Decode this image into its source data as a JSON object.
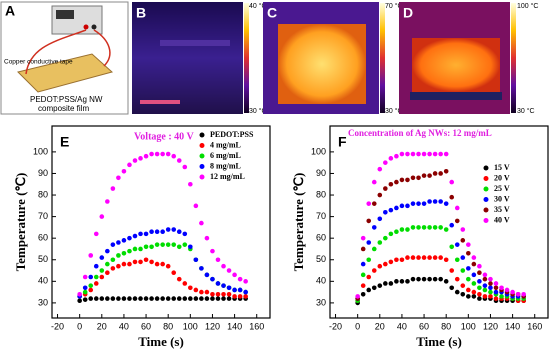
{
  "panels": [
    {
      "label": "A",
      "texts": [
        "Copper conductive tape",
        "PEDOT:PSS/Ag NW",
        "composite film"
      ]
    },
    {
      "label": "B",
      "scale_max": "40 °C",
      "scale_min": "30 °C"
    },
    {
      "label": "C",
      "scale_max": "70 °C",
      "scale_min": "30 °C"
    },
    {
      "label": "D",
      "scale_max": "100 °C",
      "scale_min": "30 °C"
    }
  ],
  "chart_data": [
    {
      "type": "scatter",
      "panel_label": "E",
      "annotation": "Voltage : 40 V",
      "annotation_color": "#e020e0",
      "x_label": "Time (s)",
      "y_label": "Temperature (℃)",
      "xlim": [
        -25,
        172
      ],
      "ylim": [
        23,
        112
      ],
      "xticks": [
        -20,
        0,
        20,
        40,
        60,
        80,
        100,
        120,
        140,
        160
      ],
      "yticks": [
        30,
        40,
        50,
        60,
        70,
        80,
        90,
        100
      ],
      "legend": "upper right",
      "x": [
        0,
        5,
        10,
        15,
        20,
        25,
        30,
        35,
        40,
        45,
        50,
        55,
        60,
        65,
        70,
        75,
        80,
        85,
        90,
        95,
        100,
        105,
        110,
        115,
        120,
        125,
        130,
        135,
        140,
        145,
        150
      ],
      "series": [
        {
          "name": "PEDOT:PSS",
          "color": "#000000",
          "values": [
            31,
            31.5,
            32,
            32,
            32,
            32,
            32,
            32,
            32,
            32,
            32,
            32,
            32,
            32,
            32,
            32,
            32,
            32,
            32,
            32,
            32,
            32,
            32,
            32,
            32,
            32,
            32,
            32,
            32,
            32,
            32
          ]
        },
        {
          "name": "4 mg/mL",
          "color": "#ff0000",
          "values": [
            33,
            34,
            36,
            39,
            42,
            44,
            46,
            47,
            48,
            48,
            49,
            49,
            50,
            49,
            48,
            48,
            47,
            44,
            41,
            39,
            37,
            36,
            35,
            35,
            34,
            34,
            34,
            34,
            33,
            33,
            33
          ]
        },
        {
          "name": "6 mg/mL",
          "color": "#00dd00",
          "values": [
            33,
            35,
            38,
            42,
            45,
            48,
            50,
            52,
            53,
            54,
            55,
            55,
            56,
            56,
            57,
            57,
            57,
            57,
            56,
            57,
            55,
            50,
            46,
            43,
            41,
            39,
            38,
            37,
            36,
            36,
            35
          ]
        },
        {
          "name": "8 mg/mL",
          "color": "#0000ff",
          "values": [
            33,
            37,
            42,
            47,
            51,
            54,
            57,
            58,
            59,
            60,
            61,
            62,
            62,
            63,
            63,
            63,
            64,
            64,
            63,
            62,
            56,
            50,
            46,
            43,
            41,
            39,
            38,
            37,
            36,
            36,
            35
          ]
        },
        {
          "name": "12 mg/mL",
          "color": "#ff00ff",
          "values": [
            34,
            42,
            52,
            62,
            70,
            77,
            83,
            88,
            91,
            94,
            96,
            97,
            98,
            99,
            99,
            99,
            99,
            98,
            96,
            93,
            85,
            75,
            67,
            60,
            54,
            50,
            47,
            45,
            43,
            41,
            40
          ]
        }
      ]
    },
    {
      "type": "scatter",
      "panel_label": "F",
      "annotation": "Concentration of Ag NWs: 12 mg/mL",
      "annotation_color": "#e020e0",
      "x_label": "Time (s)",
      "y_label": "Temperature (℃)",
      "xlim": [
        -25,
        172
      ],
      "ylim": [
        23,
        112
      ],
      "xticks": [
        -20,
        0,
        20,
        40,
        60,
        80,
        100,
        120,
        140,
        160
      ],
      "yticks": [
        30,
        40,
        50,
        60,
        70,
        80,
        90,
        100
      ],
      "legend": "center right",
      "x": [
        0,
        5,
        10,
        15,
        20,
        25,
        30,
        35,
        40,
        45,
        50,
        55,
        60,
        65,
        70,
        75,
        80,
        85,
        90,
        95,
        100,
        105,
        110,
        115,
        120,
        125,
        130,
        135,
        140,
        145,
        150
      ],
      "series": [
        {
          "name": "15 V",
          "color": "#000000",
          "values": [
            30,
            34,
            36,
            37,
            38,
            39,
            39,
            40,
            40,
            40,
            41,
            41,
            41,
            41,
            41,
            41,
            40,
            37,
            35,
            34,
            33,
            33,
            32,
            32,
            32,
            31,
            31,
            31,
            31,
            31,
            31
          ]
        },
        {
          "name": "20 V",
          "color": "#ff0000",
          "values": [
            31,
            38,
            42,
            45,
            47,
            48,
            49,
            50,
            50,
            51,
            51,
            51,
            51,
            51,
            51,
            51,
            50,
            45,
            41,
            38,
            36,
            35,
            34,
            33,
            33,
            32,
            32,
            32,
            32,
            31,
            31
          ]
        },
        {
          "name": "25 V",
          "color": "#00dd00",
          "values": [
            31,
            43,
            50,
            55,
            58,
            60,
            62,
            63,
            64,
            64,
            65,
            65,
            65,
            65,
            65,
            65,
            64,
            56,
            50,
            45,
            41,
            39,
            37,
            36,
            35,
            34,
            33,
            33,
            32,
            32,
            32
          ]
        },
        {
          "name": "30 V",
          "color": "#0000ff",
          "values": [
            32,
            48,
            58,
            65,
            69,
            72,
            73,
            74,
            75,
            75,
            76,
            76,
            76,
            77,
            77,
            77,
            76,
            66,
            57,
            51,
            46,
            43,
            40,
            38,
            37,
            35,
            35,
            34,
            33,
            33,
            33
          ]
        },
        {
          "name": "35 V",
          "color": "#8b0000",
          "values": [
            32,
            55,
            68,
            76,
            80,
            83,
            85,
            86,
            87,
            87,
            88,
            88,
            89,
            89,
            90,
            90,
            91,
            79,
            68,
            59,
            53,
            48,
            44,
            41,
            39,
            37,
            36,
            35,
            34,
            34,
            33
          ]
        },
        {
          "name": "40 V",
          "color": "#ff00ff",
          "values": [
            33,
            60,
            76,
            86,
            92,
            95,
            97,
            98,
            99,
            99,
            99,
            99,
            99,
            99,
            99,
            99,
            99,
            86,
            74,
            64,
            57,
            51,
            47,
            43,
            41,
            39,
            37,
            36,
            35,
            34,
            34
          ]
        }
      ]
    }
  ]
}
